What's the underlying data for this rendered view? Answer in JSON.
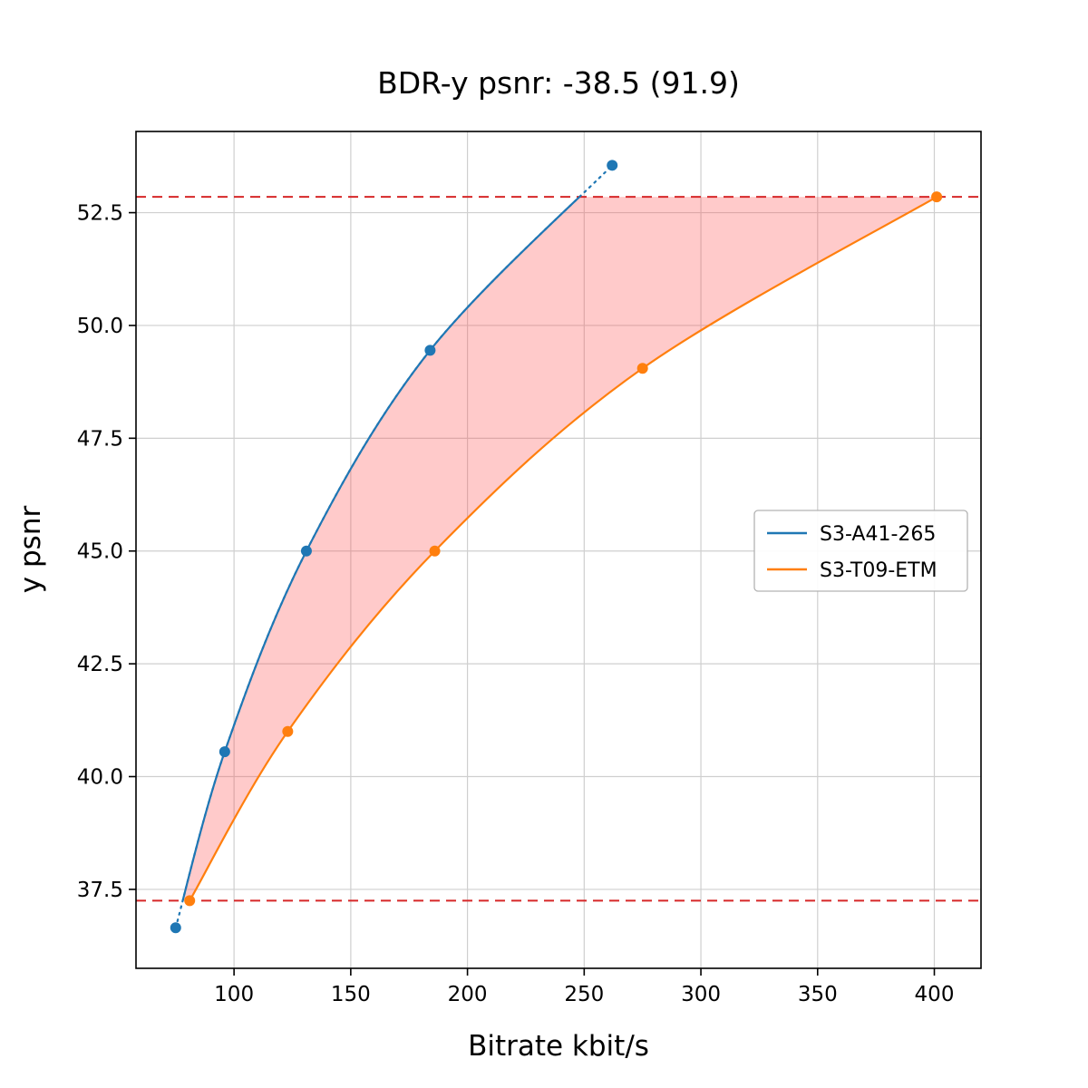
{
  "chart_data": {
    "type": "line",
    "title": "BDR-y psnr: -38.5 (91.9)",
    "xlabel": "Bitrate kbit/s",
    "ylabel": "y psnr",
    "xlim": [
      58,
      420
    ],
    "ylim": [
      35.75,
      54.3
    ],
    "x_ticks": [
      100,
      150,
      200,
      250,
      300,
      350,
      400
    ],
    "y_ticks": [
      37.5,
      40.0,
      42.5,
      45.0,
      47.5,
      50.0,
      52.5
    ],
    "grid": true,
    "legend_position": "center right",
    "series": [
      {
        "name": "S3-A41-265",
        "color": "#1f77b4",
        "marker": "circle",
        "dotted_outside_range": true,
        "points": [
          [
            75,
            36.65
          ],
          [
            96,
            40.55
          ],
          [
            131,
            45.0
          ],
          [
            184,
            49.45
          ],
          [
            262,
            53.55
          ]
        ]
      },
      {
        "name": "S3-T09-ETM",
        "color": "#ff7f0e",
        "marker": "circle",
        "dotted_outside_range": false,
        "points": [
          [
            81,
            37.25
          ],
          [
            123,
            41.0
          ],
          [
            186,
            45.0
          ],
          [
            275,
            49.05
          ],
          [
            401,
            52.85
          ]
        ]
      }
    ],
    "hlines": [
      {
        "y": 37.25,
        "color": "#d62728",
        "style": "dashed"
      },
      {
        "y": 52.85,
        "color": "#d62728",
        "style": "dashed"
      }
    ],
    "shaded_region": {
      "between": [
        "S3-A41-265",
        "S3-T09-ETM"
      ],
      "y_range": [
        37.25,
        52.85
      ],
      "color": "#ff5050",
      "opacity": 0.3
    },
    "bd_rate_percent": -38.5,
    "bd_rate_secondary": 91.9
  }
}
